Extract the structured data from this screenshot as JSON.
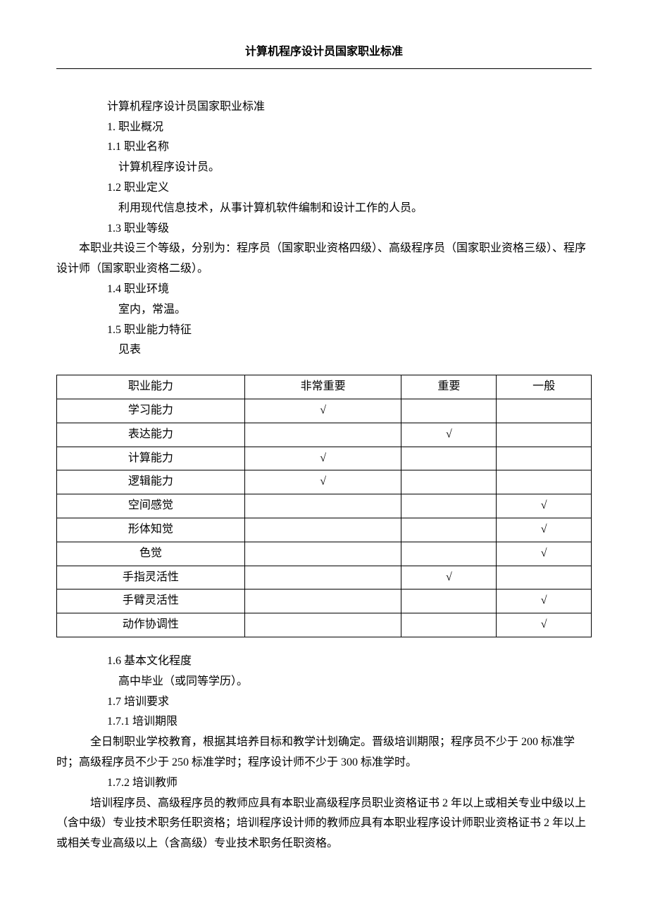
{
  "header": {
    "title": "计算机程序设计员国家职业标准"
  },
  "content": {
    "title": "计算机程序设计员国家职业标准",
    "s1": "1. 职业概况",
    "s1_1": "1.1 职业名称",
    "s1_1_body": "计算机程序设计员。",
    "s1_2": "1.2 职业定义",
    "s1_2_body": "利用现代信息技术，从事计算机软件编制和设计工作的人员。",
    "s1_3": "1.3 职业等级",
    "s1_3_body": "　　本职业共设三个等级，分别为：程序员（国家职业资格四级）、高级程序员（国家职业资格三级）、程序设计师（国家职业资格二级）。",
    "s1_4": "1.4 职业环境",
    "s1_4_body": "室内，常温。",
    "s1_5": "1.5 职业能力特征",
    "s1_5_body": "见表",
    "s1_6": "1.6 基本文化程度",
    "s1_6_body": "高中毕业（或同等学历）。",
    "s1_7": "1.7 培训要求",
    "s1_7_1": "1.7.1 培训期限",
    "s1_7_1_body": "　　　全日制职业学校教育，根据其培养目标和教学计划确定。晋级培训期限；程序员不少于 200 标准学时；高级程序员不少于 250 标准学时；程序设计师不少于 300 标准学时。",
    "s1_7_2": "1.7.2 培训教师",
    "s1_7_2_body": "　　　培训程序员、高级程序员的教师应具有本职业高级程序员职业资格证书 2 年以上或相关专业中级以上（含中级）专业技术职务任职资格；培训程序设计师的教师应具有本职业程序设计师职业资格证书 2 年以上或相关专业高级以上（含高级）专业技术职务任职资格。"
  },
  "table": {
    "columns": [
      "职业能力",
      "非常重要",
      "重要",
      "一般"
    ],
    "rows": [
      [
        "学习能力",
        "√",
        "",
        ""
      ],
      [
        "表达能力",
        "",
        "√",
        ""
      ],
      [
        "计算能力",
        "√",
        "",
        ""
      ],
      [
        "逻辑能力",
        "√",
        "",
        ""
      ],
      [
        "空间感觉",
        "",
        "",
        "√"
      ],
      [
        "形体知觉",
        "",
        "",
        "√"
      ],
      [
        "色觉",
        "",
        "",
        "√"
      ],
      [
        "手指灵活性",
        "",
        "√",
        ""
      ],
      [
        "手臂灵活性",
        "",
        "",
        "√"
      ],
      [
        "动作协调性",
        "",
        "",
        "√"
      ]
    ]
  }
}
